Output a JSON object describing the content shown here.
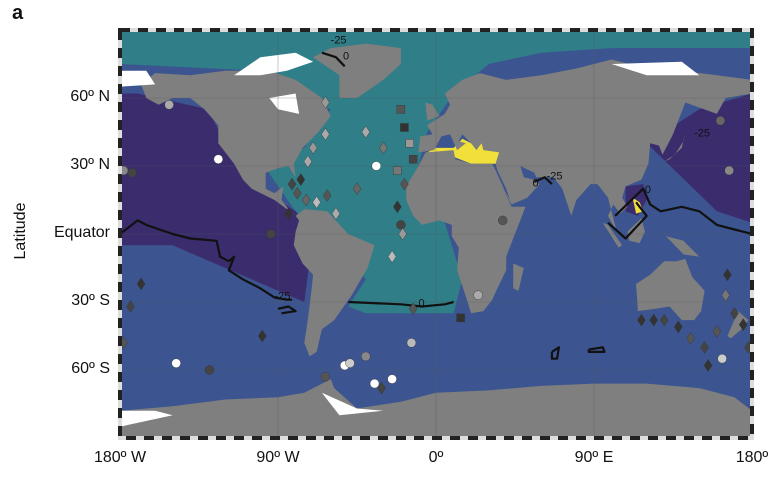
{
  "panel_label": "a",
  "y_axis_title": "Latitude",
  "lat_ticks": [
    {
      "label": "60º N",
      "lat": 60
    },
    {
      "label": "30º N",
      "lat": 30
    },
    {
      "label": "Equator",
      "lat": 0
    },
    {
      "label": "30º S",
      "lat": -30
    },
    {
      "label": "60º S",
      "lat": -60
    }
  ],
  "lon_ticks": [
    {
      "label": "180º W",
      "lon": -180
    },
    {
      "label": "90º W",
      "lon": -90
    },
    {
      "label": "0º",
      "lon": 0
    },
    {
      "label": "90º E",
      "lon": 90
    },
    {
      "label": "180º",
      "lon": 180
    }
  ],
  "map_data": {
    "projection": "equirectangular",
    "lon_range": [
      -180,
      180
    ],
    "lat_range": [
      -90,
      90
    ],
    "grid": true,
    "colors": {
      "land": "#7f7f7f",
      "ice": "#ffffff",
      "ocean_default": "#3c5590",
      "north_pacific": "#3b2c6e",
      "atlantic": "#2f7e88",
      "arctic": "#33798a",
      "mediterranean": "#f2e03a",
      "contour": "#111111"
    },
    "contour_labels": [
      {
        "text": "-25",
        "lon": -92,
        "lat": -29
      },
      {
        "text": "0",
        "lon": -10,
        "lat": -32
      },
      {
        "text": "0",
        "lon": 55,
        "lat": 21
      },
      {
        "text": "-25",
        "lon": 63,
        "lat": 24
      },
      {
        "text": "-25",
        "lon": 147,
        "lat": 43
      },
      {
        "text": "0",
        "lon": 119,
        "lat": 18
      },
      {
        "text": "-25",
        "lon": -60,
        "lat": 84
      },
      {
        "text": "0",
        "lon": -53,
        "lat": 77
      }
    ],
    "markers": [
      {
        "lon": -152,
        "lat": 57,
        "shape": "circle",
        "shade": "#aaaaaa"
      },
      {
        "lon": -124,
        "lat": 33,
        "shape": "circle",
        "shade": "#ffffff"
      },
      {
        "lon": -178,
        "lat": 28,
        "shape": "circle",
        "shade": "#888888"
      },
      {
        "lon": -173,
        "lat": 27,
        "shape": "circle",
        "shade": "#444444"
      },
      {
        "lon": -94,
        "lat": 0,
        "shape": "circle",
        "shade": "#444444"
      },
      {
        "lon": -34,
        "lat": 30,
        "shape": "circle",
        "shade": "#ffffff"
      },
      {
        "lon": -63,
        "lat": 58,
        "shape": "diamond",
        "shade": "#999999"
      },
      {
        "lon": -63,
        "lat": 44,
        "shape": "diamond",
        "shade": "#aaaaaa"
      },
      {
        "lon": -70,
        "lat": 38,
        "shape": "diamond",
        "shade": "#999999"
      },
      {
        "lon": -73,
        "lat": 32,
        "shape": "diamond",
        "shade": "#aaaaaa"
      },
      {
        "lon": -77,
        "lat": 24,
        "shape": "diamond",
        "shade": "#333333"
      },
      {
        "lon": -82,
        "lat": 22,
        "shape": "diamond",
        "shade": "#444444"
      },
      {
        "lon": -79,
        "lat": 18,
        "shape": "diamond",
        "shade": "#555555"
      },
      {
        "lon": -74,
        "lat": 15,
        "shape": "diamond",
        "shade": "#666666"
      },
      {
        "lon": -68,
        "lat": 14,
        "shape": "diamond",
        "shade": "#bbbbbb"
      },
      {
        "lon": -62,
        "lat": 17,
        "shape": "diamond",
        "shade": "#555555"
      },
      {
        "lon": -57,
        "lat": 9,
        "shape": "diamond",
        "shade": "#aaaaaa"
      },
      {
        "lon": -84,
        "lat": 9,
        "shape": "diamond",
        "shade": "#333333"
      },
      {
        "lon": -45,
        "lat": 20,
        "shape": "diamond",
        "shade": "#666666"
      },
      {
        "lon": -40,
        "lat": 45,
        "shape": "diamond",
        "shade": "#aaaaaa"
      },
      {
        "lon": -30,
        "lat": 38,
        "shape": "diamond",
        "shade": "#777777"
      },
      {
        "lon": -20,
        "lat": 55,
        "shape": "square",
        "shade": "#555555"
      },
      {
        "lon": -18,
        "lat": 47,
        "shape": "square",
        "shade": "#333333"
      },
      {
        "lon": -15,
        "lat": 40,
        "shape": "square",
        "shade": "#999999"
      },
      {
        "lon": -13,
        "lat": 33,
        "shape": "square",
        "shade": "#444444"
      },
      {
        "lon": -22,
        "lat": 28,
        "shape": "square",
        "shade": "#777777"
      },
      {
        "lon": -18,
        "lat": 22,
        "shape": "diamond",
        "shade": "#555555"
      },
      {
        "lon": -22,
        "lat": 12,
        "shape": "diamond",
        "shade": "#333333"
      },
      {
        "lon": -20,
        "lat": 4,
        "shape": "circle",
        "shade": "#444444"
      },
      {
        "lon": -19,
        "lat": 0,
        "shape": "diamond",
        "shade": "#999999"
      },
      {
        "lon": -25,
        "lat": -10,
        "shape": "diamond",
        "shade": "#bbbbbb"
      },
      {
        "lon": -13,
        "lat": -33,
        "shape": "diamond",
        "shade": "#555555"
      },
      {
        "lon": 14,
        "lat": -37,
        "shape": "square",
        "shade": "#333333"
      },
      {
        "lon": -14,
        "lat": -48,
        "shape": "circle",
        "shade": "#bbbbbb"
      },
      {
        "lon": -25,
        "lat": -64,
        "shape": "circle",
        "shade": "#ffffff"
      },
      {
        "lon": -31,
        "lat": -68,
        "shape": "diamond",
        "shade": "#444444"
      },
      {
        "lon": -40,
        "lat": -54,
        "shape": "circle",
        "shade": "#888888"
      },
      {
        "lon": -52,
        "lat": -58,
        "shape": "circle",
        "shade": "#ffffff"
      },
      {
        "lon": -49,
        "lat": -57,
        "shape": "circle",
        "shade": "#cccccc"
      },
      {
        "lon": -35,
        "lat": -66,
        "shape": "circle",
        "shade": "#ffffff"
      },
      {
        "lon": -63,
        "lat": -63,
        "shape": "circle",
        "shade": "#555555"
      },
      {
        "lon": -99,
        "lat": -45,
        "shape": "diamond",
        "shade": "#333333"
      },
      {
        "lon": -168,
        "lat": -22,
        "shape": "diamond",
        "shade": "#333333"
      },
      {
        "lon": -174,
        "lat": -32,
        "shape": "diamond",
        "shade": "#444444"
      },
      {
        "lon": -178,
        "lat": -48,
        "shape": "diamond",
        "shade": "#555555"
      },
      {
        "lon": -148,
        "lat": -57,
        "shape": "circle",
        "shade": "#ffffff"
      },
      {
        "lon": -129,
        "lat": -60,
        "shape": "circle",
        "shade": "#444444"
      },
      {
        "lon": 24,
        "lat": -27,
        "shape": "circle",
        "shade": "#aaaaaa"
      },
      {
        "lon": 38,
        "lat": 6,
        "shape": "circle",
        "shade": "#555555"
      },
      {
        "lon": 162,
        "lat": 50,
        "shape": "circle",
        "shade": "#666666"
      },
      {
        "lon": 167,
        "lat": 28,
        "shape": "circle",
        "shade": "#888888"
      },
      {
        "lon": 166,
        "lat": -18,
        "shape": "diamond",
        "shade": "#333333"
      },
      {
        "lon": 165,
        "lat": -27,
        "shape": "diamond",
        "shade": "#777777"
      },
      {
        "lon": 170,
        "lat": -35,
        "shape": "diamond",
        "shade": "#444444"
      },
      {
        "lon": 175,
        "lat": -40,
        "shape": "diamond",
        "shade": "#333333"
      },
      {
        "lon": 160,
        "lat": -43,
        "shape": "diamond",
        "shade": "#555555"
      },
      {
        "lon": 153,
        "lat": -50,
        "shape": "diamond",
        "shade": "#444444"
      },
      {
        "lon": 163,
        "lat": -55,
        "shape": "circle",
        "shade": "#cccccc"
      },
      {
        "lon": 155,
        "lat": -58,
        "shape": "diamond",
        "shade": "#333333"
      },
      {
        "lon": 117,
        "lat": -38,
        "shape": "diamond",
        "shade": "#333333"
      },
      {
        "lon": 124,
        "lat": -38,
        "shape": "diamond",
        "shade": "#333333"
      },
      {
        "lon": 130,
        "lat": -38,
        "shape": "diamond",
        "shade": "#444444"
      },
      {
        "lon": 138,
        "lat": -41,
        "shape": "diamond",
        "shade": "#333333"
      },
      {
        "lon": 145,
        "lat": -46,
        "shape": "diamond",
        "shade": "#555555"
      },
      {
        "lon": 178,
        "lat": -50,
        "shape": "diamond",
        "shade": "#444444"
      }
    ]
  }
}
